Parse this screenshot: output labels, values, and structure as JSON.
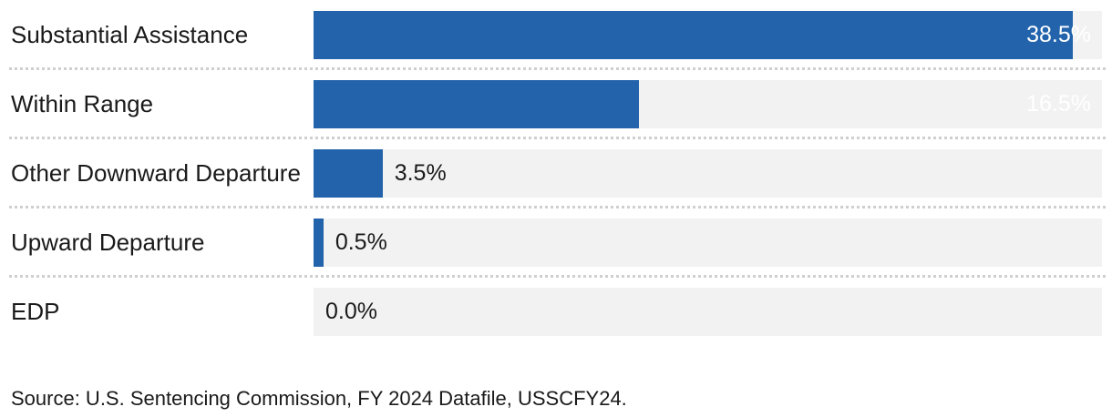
{
  "chart_data": {
    "type": "bar",
    "orientation": "horizontal",
    "categories": [
      "Substantial Assistance",
      "Within Range",
      "Other Downward Departure",
      "Upward Departure",
      "EDP"
    ],
    "values": [
      38.5,
      16.5,
      3.5,
      0.5,
      0.0
    ],
    "value_labels": [
      "38.5%",
      "16.5%",
      "3.5%",
      "0.5%",
      "0.0%"
    ],
    "title": "",
    "xlabel": "",
    "ylabel": "",
    "xlim": [
      0,
      40
    ],
    "grid": false,
    "legend": false,
    "layout_hints": {
      "value_label_inside_threshold": 10,
      "track_full_width": true,
      "row_separator_style": "dotted"
    },
    "colors": {
      "bar": "#2263ac",
      "track": "#f2f2f2",
      "separator": "#cfcfcf",
      "label_text": "#1a1a1a",
      "value_text_inside": "#ffffff",
      "value_text_outside": "#1a1a1a"
    }
  },
  "source_note": "Source: U.S. Sentencing Commission, FY 2024 Datafile, USSCFY24."
}
